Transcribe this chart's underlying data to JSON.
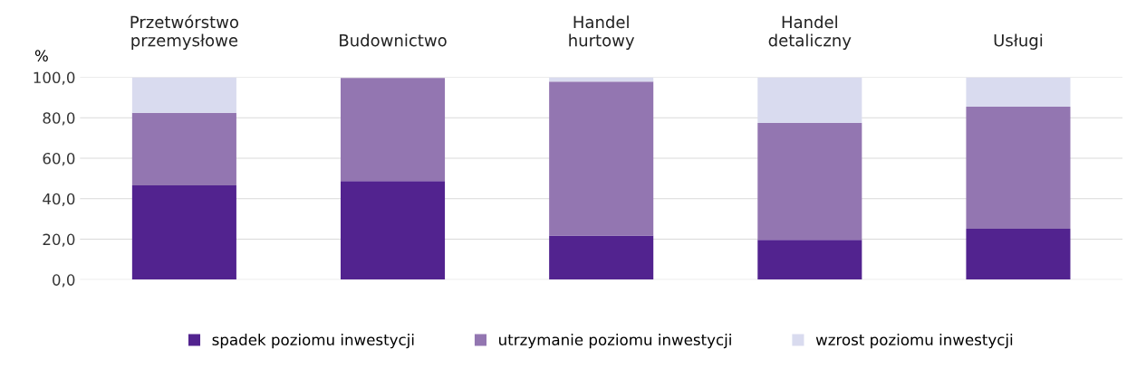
{
  "chart_data": {
    "type": "bar",
    "stacked": true,
    "ylabel": "%",
    "categories": [
      "Przetwórstwo\nprzemysłowe",
      "Budownictwo",
      "Handel\nhurtowy",
      "Handel\ndetaliczny",
      "Usługi"
    ],
    "series": [
      {
        "name": "spadek poziomu inwestycji",
        "color": "#52238f",
        "values": [
          46.6,
          48.7,
          21.8,
          19.7,
          25.2
        ]
      },
      {
        "name": "utrzymanie poziomu inwestycji",
        "color": "#9376b1",
        "values": [
          35.9,
          50.9,
          76.1,
          57.7,
          60.3
        ]
      },
      {
        "name": "wzrost poziomu inwestycji",
        "color": "#d9dbef",
        "values": [
          17.5,
          null,
          2.1,
          22.6,
          14.5
        ]
      }
    ],
    "ylim": [
      0,
      100
    ],
    "yticks": [
      {
        "value": 0,
        "label": "0,0"
      },
      {
        "value": 20,
        "label": "20,0"
      },
      {
        "value": 40,
        "label": "40,0"
      },
      {
        "value": 60,
        "label": "60,0"
      },
      {
        "value": 80,
        "label": "80,0"
      },
      {
        "value": 100,
        "label": "100,0"
      }
    ],
    "grid": "y",
    "legend": "bottom"
  }
}
